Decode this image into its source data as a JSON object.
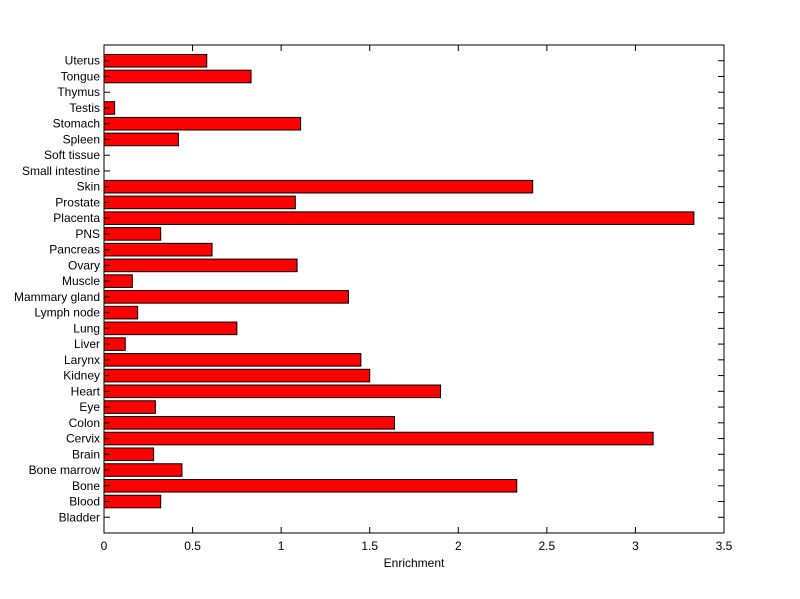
{
  "chart_data": {
    "type": "bar",
    "orientation": "horizontal",
    "title": "",
    "xlabel": "Enrichment",
    "ylabel": "",
    "xlim": [
      0,
      3.5
    ],
    "x_ticks": [
      "0",
      "0.5",
      "1",
      "1.5",
      "2",
      "2.5",
      "3",
      "3.5"
    ],
    "grid": false,
    "bar_color": "#ff0000",
    "categories": [
      "Bladder",
      "Blood",
      "Bone",
      "Bone marrow",
      "Brain",
      "Cervix",
      "Colon",
      "Eye",
      "Heart",
      "Kidney",
      "Larynx",
      "Liver",
      "Lung",
      "Lymph node",
      "Mammary gland",
      "Muscle",
      "Ovary",
      "Pancreas",
      "PNS",
      "Placenta",
      "Prostate",
      "Skin",
      "Small intestine",
      "Soft tissue",
      "Spleen",
      "Stomach",
      "Testis",
      "Thymus",
      "Tongue",
      "Uterus"
    ],
    "values": [
      0,
      0.32,
      2.33,
      0.44,
      0.28,
      3.1,
      1.64,
      0.29,
      1.9,
      1.5,
      1.45,
      0.12,
      0.75,
      0.19,
      1.38,
      0.16,
      1.09,
      0.61,
      0.32,
      3.33,
      1.08,
      2.42,
      0,
      0,
      0.42,
      1.11,
      0.06,
      0,
      0.83,
      0.58
    ]
  }
}
